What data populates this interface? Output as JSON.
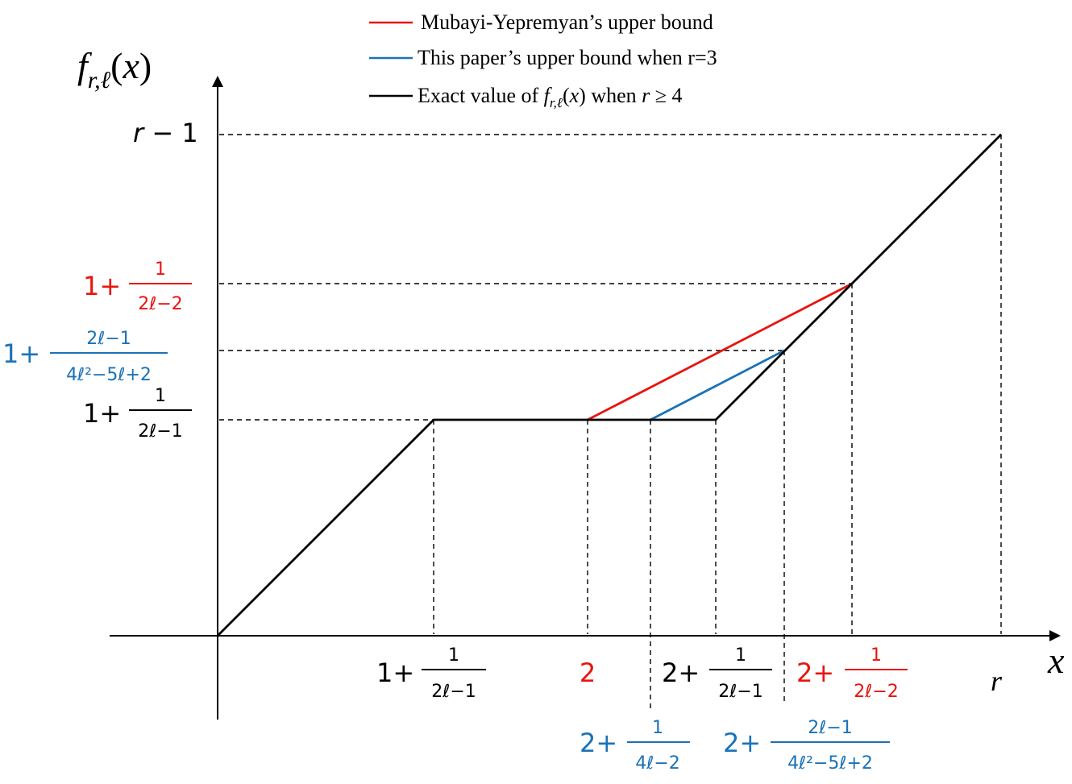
{
  "colors": {
    "red": "#e8140f",
    "blue": "#1a72b8",
    "black": "#000000"
  },
  "legend": {
    "items": [
      {
        "label": "Mubayi-Yepremyan’s upper bound",
        "color": "#e8140f"
      },
      {
        "label": "This paper’s upper bound when r=3",
        "color": "#1a72b8"
      },
      {
        "label_prefix": "Exact value of ",
        "label_math": "f_{r,ℓ}(x)",
        "label_suffix": " when r ≥ 4",
        "color": "#000000"
      }
    ]
  },
  "axes": {
    "y_title": "f_{r,ℓ}(x)",
    "x_title": "x",
    "y_top_label": "r − 1",
    "x_end_label": "r"
  },
  "y_ticks": [
    {
      "int": "1+",
      "num": "1",
      "den": "2ℓ−2",
      "color": "#e8140f"
    },
    {
      "int": "1+",
      "num": "2ℓ−1",
      "den": "4ℓ²−5ℓ+2",
      "color": "#1a72b8"
    },
    {
      "int": "1+",
      "num": "1",
      "den": "2ℓ−1",
      "color": "#000000"
    }
  ],
  "x_ticks": [
    {
      "int": "1+",
      "num": "1",
      "den": "2ℓ−1",
      "color": "#000000"
    },
    {
      "int": "2",
      "color": "#e8140f"
    },
    {
      "int": "2+",
      "num": "1",
      "den": "2ℓ−1",
      "color": "#000000"
    },
    {
      "int": "2+",
      "num": "1",
      "den": "2ℓ−2",
      "color": "#e8140f"
    },
    {
      "int": "2+",
      "num": "1",
      "den": "4ℓ−2",
      "color": "#1a72b8"
    },
    {
      "int": "2+",
      "num": "2ℓ−1",
      "den": "4ℓ²−5ℓ+2",
      "color": "#1a72b8"
    }
  ]
}
